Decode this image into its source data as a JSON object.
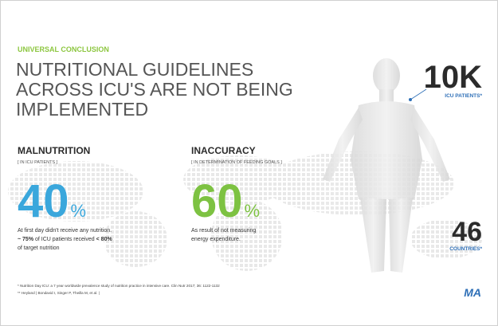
{
  "slide": {
    "kicker": "UNIVERSAL CONCLUSION",
    "heading": [
      "NUTRITIONAL GUIDELINES",
      "ACROSS ICU'S ARE NOT BEING",
      "IMPLEMENTED"
    ],
    "patients": {
      "value": "10K",
      "label": "ICU PATIENTS*"
    },
    "countries": {
      "value": "46",
      "label": "COUNTRIES*"
    },
    "sections": [
      {
        "title": "MALNUTRITION",
        "subtitle": "[ IN ICU PATIENTS ]",
        "stat": "40",
        "unit": "%",
        "line1": "At first day didn't receive any nutrition.",
        "line2": [
          "~ 75%",
          " of ICU patients received ",
          "< 80%"
        ],
        "line3": "of target nutrition"
      },
      {
        "title": "INACCURACY",
        "subtitle": "[ IN DETERMINATION OF FEEDING GOALS ]",
        "stat": "60",
        "unit": "%",
        "line1": "As result of not measuring",
        "line2": [
          "energy expenditure."
        ],
        "line3": ""
      }
    ],
    "footnotes": [
      "* Nutrition Day ICU: a 7 year worldwide prevalence study of nutrition practice in intensive care. Clin Nutr 2017; 36: 1122-1132",
      "** Heyland | Bondavid I, Singer P, Theilla M, et al. |"
    ],
    "logo": "MA"
  }
}
